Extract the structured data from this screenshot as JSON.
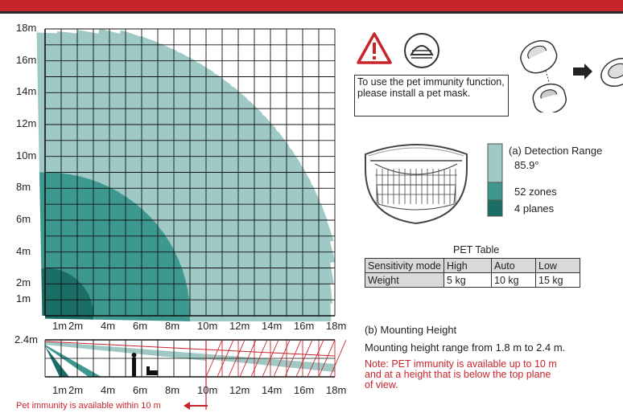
{
  "top_view": {
    "y_labels": [
      "18m",
      "16m",
      "14m",
      "12m",
      "10m",
      "8m",
      "6m",
      "4m",
      "2m",
      "1m"
    ],
    "x_labels": [
      "1m",
      "2m",
      "4m",
      "6m",
      "8m",
      "10m",
      "12m",
      "14m",
      "16m",
      "18m"
    ]
  },
  "side_view": {
    "height_label": "2.4m",
    "x_labels": [
      "1m",
      "2m",
      "4m",
      "6m",
      "8m",
      "10m",
      "12m",
      "14m",
      "16m",
      "18m"
    ],
    "pet_note": "Pet immunity is available within 10 m"
  },
  "pet_mask_note": "To use the pet immunity function, please install a pet mask.",
  "detection": {
    "title": "(a) Detection Range",
    "angle": "85.9°",
    "zones": "52 zones",
    "planes": "4 planes",
    "colors": [
      "#9fc9c5",
      "#3d9990",
      "#1a6e66"
    ]
  },
  "pet_table": {
    "title": "PET Table",
    "rows": [
      [
        "Sensitivity mode",
        "High",
        "Auto",
        "Low"
      ],
      [
        "Weight",
        "5 kg",
        "10 kg",
        "15 kg"
      ]
    ]
  },
  "mounting": {
    "title": "(b) Mounting Height",
    "range": "Mounting height range from 1.8 m to 2.4 m.",
    "note_line1": "Note:  PET immunity is available up to 10 m",
    "note_line2": "and at a height that is below the top plane",
    "note_line3": "of view."
  }
}
